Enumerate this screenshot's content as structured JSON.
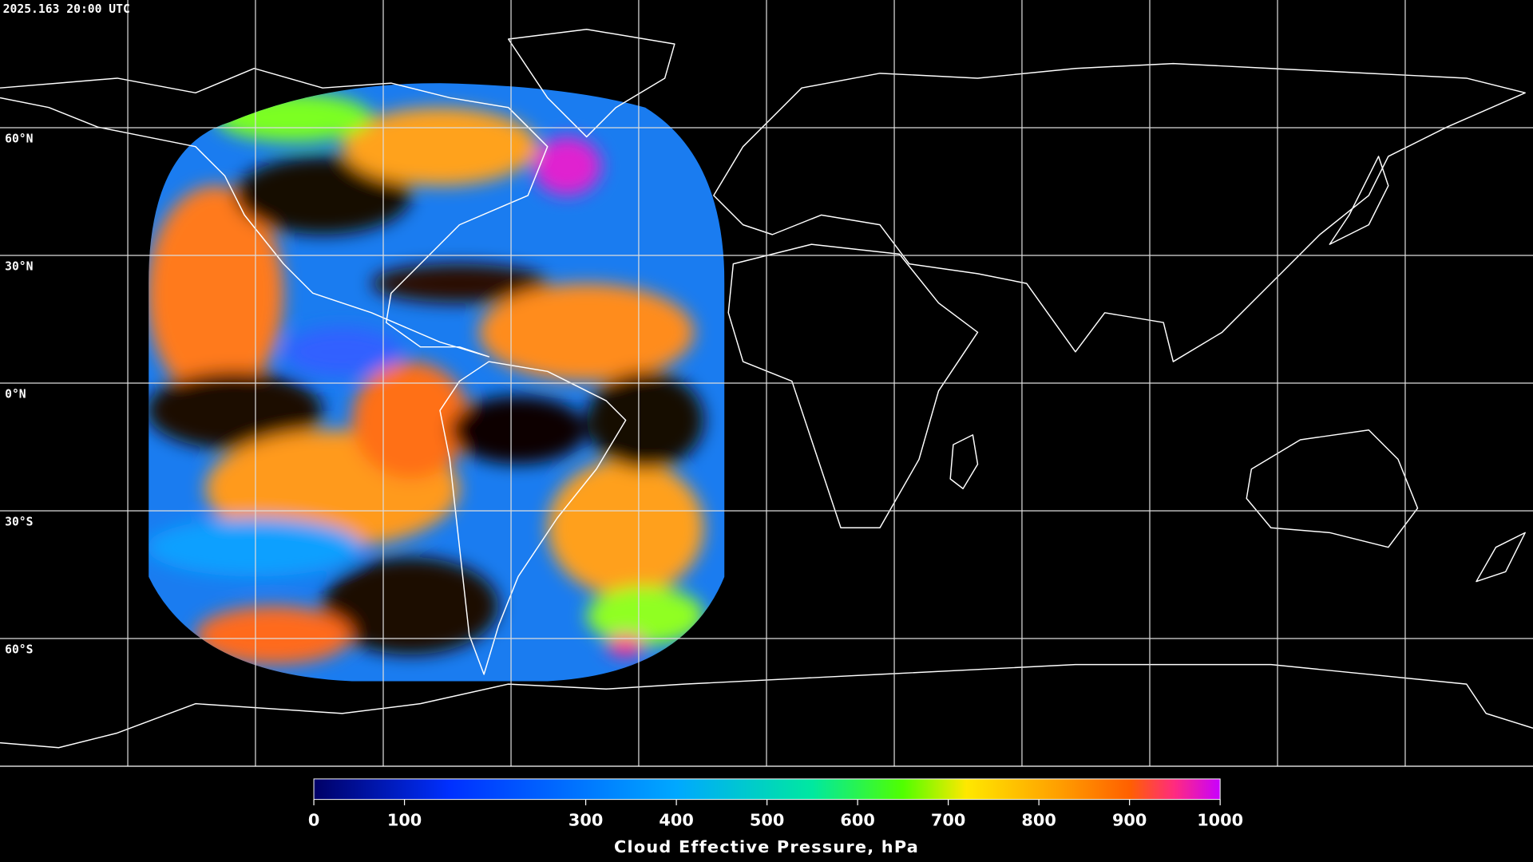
{
  "header": {
    "timestamp": "2025.163 20:00 UTC"
  },
  "map": {
    "lat_lines": [
      {
        "value": 60,
        "label": "60°N"
      },
      {
        "value": 30,
        "label": "30°N"
      },
      {
        "value": 0,
        "label": "0°N"
      },
      {
        "value": -30,
        "label": "30°S"
      },
      {
        "value": -60,
        "label": "60°S"
      }
    ]
  },
  "colorbar": {
    "title": "Cloud Effective Pressure, hPa",
    "lim": [
      0,
      1000
    ],
    "ticks": [
      0,
      100,
      300,
      400,
      500,
      600,
      700,
      800,
      900,
      1000
    ],
    "colormap": [
      {
        "value": 0,
        "color": "#000066"
      },
      {
        "value": 150,
        "color": "#0030ff"
      },
      {
        "value": 400,
        "color": "#00a8ff"
      },
      {
        "value": 550,
        "color": "#00e8a0"
      },
      {
        "value": 650,
        "color": "#50ff00"
      },
      {
        "value": 720,
        "color": "#ffe800"
      },
      {
        "value": 820,
        "color": "#ffa000"
      },
      {
        "value": 900,
        "color": "#ff6000"
      },
      {
        "value": 950,
        "color": "#ff2a80"
      },
      {
        "value": 1000,
        "color": "#c800ff"
      }
    ]
  }
}
